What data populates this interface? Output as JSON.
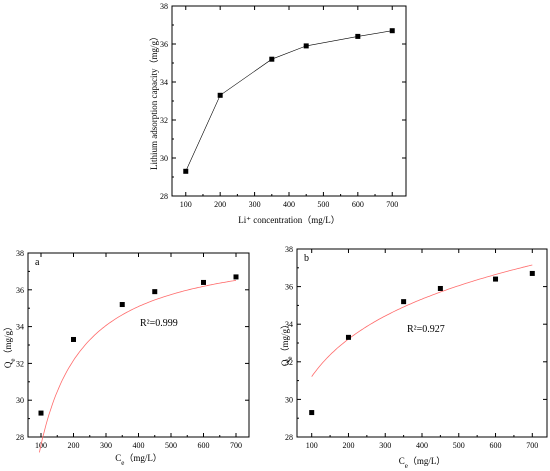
{
  "chart_data": [
    {
      "type": "line",
      "panel_label": "",
      "xlabel": "Li⁺ concentration（mg/L）",
      "ylabel": "Lithium adsorption capacity（mg/g）",
      "xlim": [
        60,
        740
      ],
      "ylim": [
        28,
        38
      ],
      "xticks": [
        100,
        200,
        300,
        400,
        500,
        600,
        700
      ],
      "yticks": [
        28,
        30,
        32,
        34,
        36,
        38
      ],
      "x": [
        100,
        200,
        350,
        450,
        600,
        700
      ],
      "y": [
        29.3,
        33.3,
        35.2,
        35.9,
        36.4,
        36.7
      ],
      "annotation": ""
    },
    {
      "type": "scatter",
      "panel_label": "a",
      "xlabel": "Ce（mg/L）",
      "ylabel": "Qe（mg/g）",
      "xlim": [
        60,
        740
      ],
      "ylim": [
        28,
        38
      ],
      "xticks": [
        100,
        200,
        300,
        400,
        500,
        600,
        700
      ],
      "yticks": [
        28,
        30,
        32,
        34,
        36,
        38
      ],
      "x": [
        100,
        200,
        350,
        450,
        600,
        700
      ],
      "y": [
        29.3,
        33.3,
        35.2,
        35.9,
        36.4,
        36.7
      ],
      "fit": "langmuir",
      "annotation": "R²=0.999"
    },
    {
      "type": "scatter",
      "panel_label": "b",
      "xlabel": "Ce（mg/L）",
      "ylabel": "Qe（mg/g）",
      "xlim": [
        60,
        740
      ],
      "ylim": [
        28,
        38
      ],
      "xticks": [
        100,
        200,
        300,
        400,
        500,
        600,
        700
      ],
      "yticks": [
        28,
        30,
        32,
        34,
        36,
        38
      ],
      "x": [
        100,
        200,
        350,
        450,
        600,
        700
      ],
      "y": [
        29.3,
        33.3,
        35.2,
        35.9,
        36.4,
        36.7
      ],
      "fit": "freundlich",
      "annotation": "R²=0.927"
    }
  ],
  "colors": {
    "markers": "#000000",
    "connector": "#000000",
    "fit_line": "#ff6b6b"
  }
}
